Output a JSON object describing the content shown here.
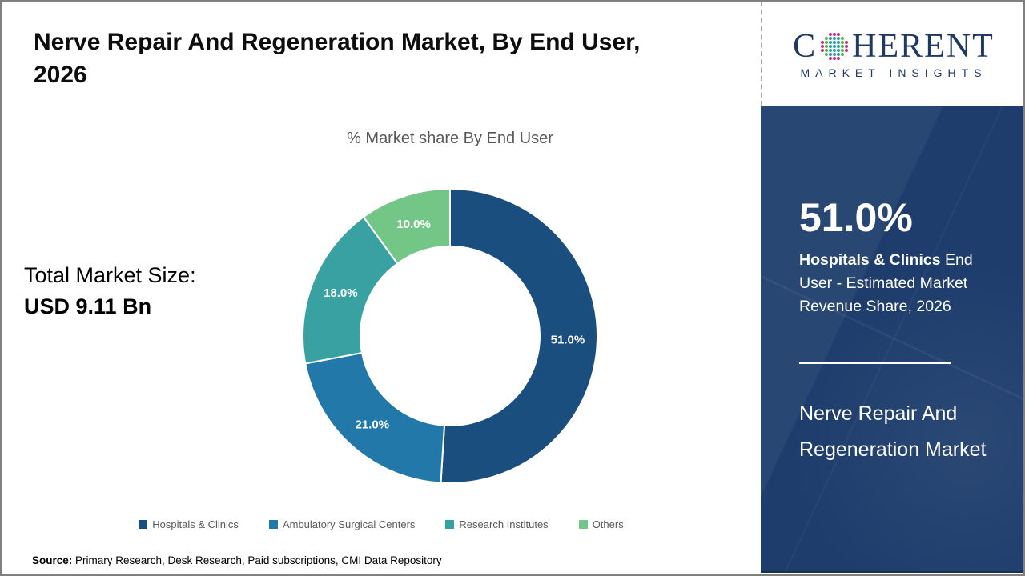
{
  "header": {
    "title": "Nerve Repair And Regeneration Market, By End User, 2026"
  },
  "chart_data": {
    "type": "pie",
    "subtype": "donut",
    "title": "% Market share By End User",
    "categories": [
      "Hospitals & Clinics",
      "Ambulatory Surgical Centers",
      "Research Institutes",
      "Others"
    ],
    "values": [
      51.0,
      21.0,
      18.0,
      10.0
    ],
    "labels": [
      "51.0%",
      "21.0%",
      "18.0%",
      "10.0%"
    ],
    "colors": [
      "#1a4e7e",
      "#2279a9",
      "#39a1a2",
      "#74c687"
    ],
    "start_angle_deg": 0,
    "direction": "clockwise",
    "legend_position": "bottom"
  },
  "total_market": {
    "label": "Total Market Size:",
    "value": "USD 9.11 Bn"
  },
  "sidebar": {
    "logo": {
      "brand_first": "C",
      "brand_rest": "HERENT",
      "subtitle": "MARKET INSIGHTS",
      "navy": "#1f3864"
    },
    "highlight_value": "51.0%",
    "highlight_bold": "Hospitals & Clinics",
    "highlight_rest": " End User - Estimated Market Revenue Share, 2026",
    "market_name": "Nerve Repair And Regeneration Market",
    "background_color": "#1e3d6c"
  },
  "footer": {
    "source_label": "Source:",
    "source_text": " Primary Research, Desk Research, Paid subscriptions, CMI Data Repository"
  }
}
